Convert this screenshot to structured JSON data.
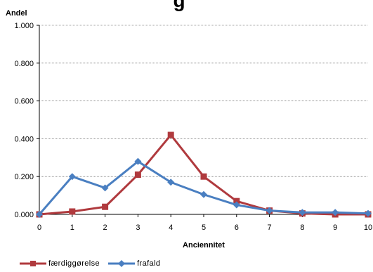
{
  "chart_data": {
    "type": "line",
    "title": "",
    "title_fragment": "g",
    "ylabel": "Andel",
    "xlabel": "Anciennitet",
    "x": [
      0,
      1,
      2,
      3,
      4,
      5,
      6,
      7,
      8,
      9,
      10
    ],
    "xticks": [
      "0",
      "1",
      "2",
      "3",
      "4",
      "5",
      "6",
      "7",
      "8",
      "9",
      "10"
    ],
    "yticks": [
      "0.000",
      "0.200",
      "0.400",
      "0.600",
      "0.800",
      "1.000"
    ],
    "ylim": [
      0,
      1
    ],
    "xlim": [
      0,
      10
    ],
    "grid": true,
    "legend_position": "bottom-left",
    "series": [
      {
        "name": "færdiggørelse",
        "color": "#b03a3e",
        "marker": "square",
        "values": [
          0.0,
          0.015,
          0.04,
          0.21,
          0.42,
          0.2,
          0.07,
          0.02,
          0.005,
          0.0,
          0.0
        ]
      },
      {
        "name": "frafald",
        "color": "#4a7fc1",
        "marker": "diamond",
        "values": [
          0.0,
          0.2,
          0.14,
          0.28,
          0.17,
          0.105,
          0.05,
          0.02,
          0.01,
          0.01,
          0.005
        ]
      }
    ]
  }
}
